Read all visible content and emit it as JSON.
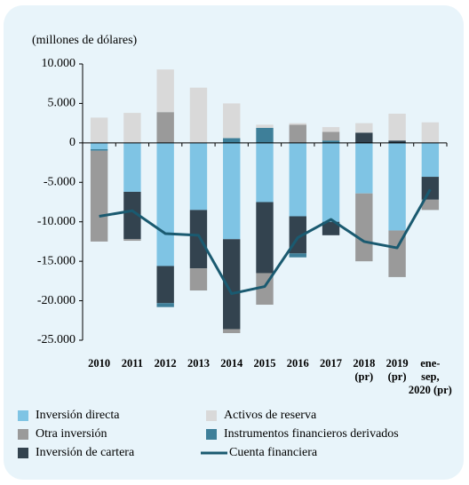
{
  "chart_data": {
    "type": "bar",
    "stacked": true,
    "y_label": "(millones de dólares)",
    "categories": [
      [
        "2010"
      ],
      [
        "2011"
      ],
      [
        "2012"
      ],
      [
        "2013"
      ],
      [
        "2014"
      ],
      [
        "2015"
      ],
      [
        "2016"
      ],
      [
        "2017"
      ],
      [
        "2018",
        "(pr)"
      ],
      [
        "2019",
        "(pr)"
      ],
      [
        "ene-",
        "sep,",
        "2020 (pr)"
      ]
    ],
    "ylim": [
      -25000,
      10000
    ],
    "yticks": [
      {
        "value": 10000,
        "label": "10.000"
      },
      {
        "value": 5000,
        "label": "5.000"
      },
      0,
      {
        "value": -5000,
        "label": "-5.000"
      },
      {
        "value": -10000,
        "label": "-10.000"
      },
      {
        "value": -15000,
        "label": "-15.000"
      },
      {
        "value": -20000,
        "label": "-20.000"
      },
      {
        "value": -25000,
        "label": "-25.000"
      }
    ],
    "series": [
      {
        "name": "Inversión directa",
        "color": "#7fc4e4",
        "values": [
          -800,
          -6200,
          -15600,
          -8500,
          -12200,
          -7500,
          -9300,
          -10000,
          -6400,
          -11100,
          -4300
        ]
      },
      {
        "name": "Inversión de cartera",
        "color": "#33434f",
        "values": [
          0,
          -6000,
          -4700,
          -7400,
          -11400,
          -9000,
          -4700,
          -1700,
          1300,
          300,
          -2900
        ]
      },
      {
        "name": "Instrumentos financieros derivados",
        "color": "#3e7f99",
        "values": [
          -200,
          0,
          -500,
          0,
          600,
          1900,
          -500,
          300,
          0,
          0,
          0
        ]
      },
      {
        "name": "Otra inversión",
        "color": "#9a9a9a",
        "values": [
          -11500,
          -200,
          3900,
          -2800,
          -500,
          -4000,
          2300,
          1100,
          -8600,
          -5900,
          -1300
        ]
      },
      {
        "name": "Activos de reserva",
        "color": "#d9d9d9",
        "values": [
          3200,
          3800,
          5400,
          7000,
          4400,
          400,
          200,
          600,
          1200,
          3400,
          2600
        ]
      },
      {
        "name": "Cuenta financiera",
        "type": "line",
        "color": "#1a5a70",
        "values": [
          -9300,
          -8600,
          -11500,
          -11700,
          -19100,
          -18200,
          -12000,
          -9700,
          -12500,
          -13300,
          -5900
        ]
      }
    ]
  }
}
